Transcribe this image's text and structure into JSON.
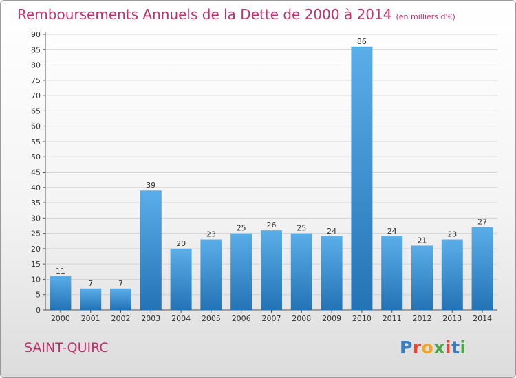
{
  "header": {
    "title": "Remboursements Annuels de la Dette de 2000 à 2014",
    "unit": "(en milliers d'€)"
  },
  "footer": {
    "place": "SAINT-QUIRC",
    "logo": "Proxiti"
  },
  "colors": {
    "title": "#c0306a",
    "bar_light": "#5aaee8",
    "bar_dark": "#2473b5",
    "logo": [
      "#3c7fc1",
      "#e8473a",
      "#f2a51f",
      "#4aa84a",
      "#e8473a",
      "#3c7fc1",
      "#4aa84a"
    ]
  },
  "chart_data": {
    "type": "bar",
    "title": "Remboursements Annuels de la Dette de 2000 à 2014",
    "xlabel": "",
    "ylabel": "",
    "categories": [
      "2000",
      "2001",
      "2002",
      "2003",
      "2004",
      "2005",
      "2006",
      "2007",
      "2008",
      "2009",
      "2010",
      "2011",
      "2012",
      "2013",
      "2014"
    ],
    "values": [
      11,
      7,
      7,
      39,
      20,
      23,
      25,
      26,
      25,
      24,
      86,
      24,
      21,
      23,
      27
    ],
    "ylim": [
      0,
      90
    ],
    "yticks": [
      0,
      5,
      10,
      15,
      20,
      25,
      30,
      35,
      40,
      45,
      50,
      55,
      60,
      65,
      70,
      75,
      80,
      85,
      90
    ],
    "grid": true,
    "data_labels": true
  }
}
